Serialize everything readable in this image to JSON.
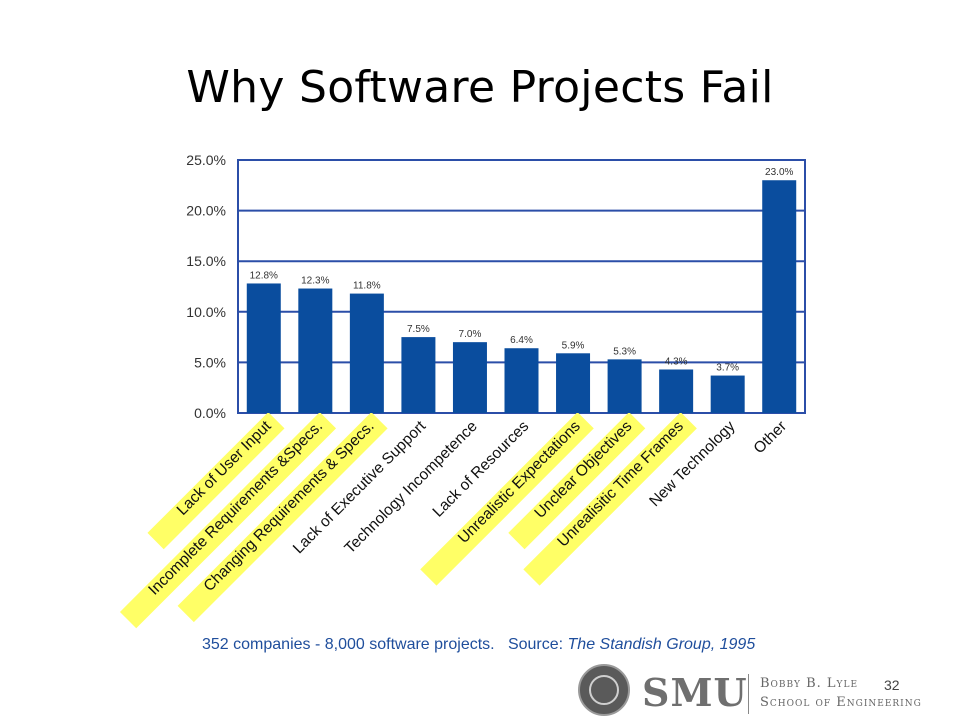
{
  "slide": {
    "title": "Why Software Projects Fail",
    "source_prefix": "352 companies - 8,000 software projects.   Source: ",
    "source_name": "The Standish Group, 1995",
    "page_number": "32"
  },
  "logo": {
    "smu": "SMU",
    "school_line1": "Bobby B. Lyle",
    "school_line2": "School of Engineering"
  },
  "colors": {
    "bar": "#0a4d9e",
    "frame": "#2b4ea8",
    "gridline": "#2b4ea8",
    "highlight": "#ffff66",
    "axis_text": "#333333"
  },
  "chart_data": {
    "type": "bar",
    "categories": [
      "Lack of User Input",
      "Incomplete Requirements &Specs.",
      "Changing Requirements & Specs.",
      "Lack of Executive Support",
      "Technology Incompetence",
      "Lack of Resources",
      "Unrealistic Expectations",
      "Unclear Objectives",
      "Unrealisitic Time Frames",
      "New Technology",
      "Other"
    ],
    "values": [
      12.8,
      12.3,
      11.8,
      7.5,
      7.0,
      6.4,
      5.9,
      5.3,
      4.3,
      3.7,
      23.0
    ],
    "data_labels": [
      "12.8%",
      "12.3%",
      "11.8%",
      "7.5%",
      "7.0%",
      "6.4%",
      "5.9%",
      "5.3%",
      "4.3%",
      "3.7%",
      "23.0%"
    ],
    "highlighted": [
      true,
      true,
      true,
      false,
      false,
      false,
      true,
      true,
      true,
      false,
      false
    ],
    "ylim": [
      0,
      25
    ],
    "y_ticks": [
      0,
      5,
      10,
      15,
      20,
      25
    ],
    "y_tick_labels": [
      "0.0%",
      "5.0%",
      "10.0%",
      "15.0%",
      "20.0%",
      "25.0%"
    ],
    "grid": true,
    "title": "Why Software Projects Fail",
    "xlabel": "",
    "ylabel": ""
  }
}
